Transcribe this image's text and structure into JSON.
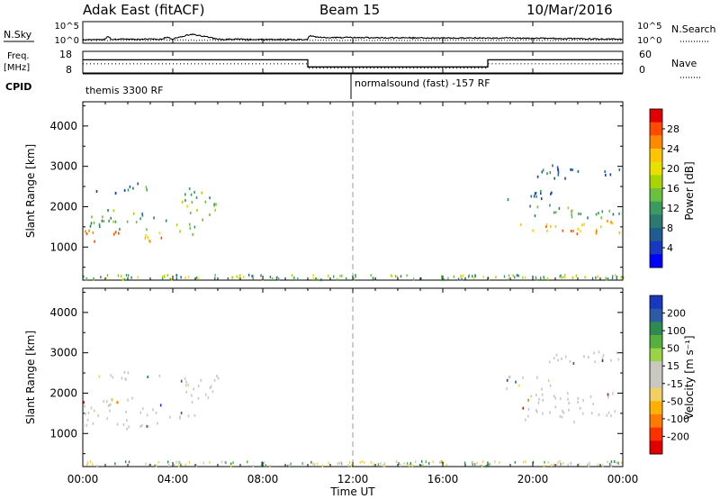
{
  "header": {
    "site": "Adak East (fitACF)",
    "beam": "Beam 15",
    "date": "10/Mar/2016"
  },
  "noise_panel": {
    "left_label": "N.Sky",
    "right_label": "N.Search",
    "left_ticks": [
      "10^5",
      "10^0"
    ],
    "right_ticks": [
      "10^5",
      "10^0"
    ]
  },
  "freq_panel": {
    "left_label_1": "Freq.",
    "left_label_2": "[MHz]",
    "right_label": "Nave",
    "left_ticks": [
      "18",
      "8"
    ],
    "right_ticks": [
      "60",
      "0"
    ]
  },
  "cpid_panel": {
    "label": "CPID",
    "segment_1": "themis 3300 RF",
    "segment_2": "normalsound (fast) -157 RF"
  },
  "power_panel": {
    "ylabel": "Slant Range [km]",
    "colorbar_label": "Power [dB]",
    "colorbar_ticks": [
      "28",
      "24",
      "20",
      "16",
      "12",
      "8",
      "4"
    ],
    "colorbar_colors": [
      "#e00000",
      "#ff4a00",
      "#ff8a00",
      "#ffc400",
      "#e8e000",
      "#a8d400",
      "#6cc040",
      "#3a9a60",
      "#2a7a70",
      "#205c90",
      "#1838c0",
      "#0000ff"
    ]
  },
  "velocity_panel": {
    "ylabel": "Slant Range [km]",
    "colorbar_label": "Velocity [m s⁻¹]",
    "colorbar_ticks": [
      "200",
      "100",
      "50",
      "15",
      "-15",
      "-50",
      "-100",
      "-200"
    ],
    "colorbar_colors": [
      "#1838c0",
      "#2a5aa8",
      "#2f8a50",
      "#55b040",
      "#9ad248",
      "#c8c8c0",
      "#c8c8c0",
      "#f0d060",
      "#ffb000",
      "#ff7a00",
      "#ff3000",
      "#e00000"
    ]
  },
  "x_axis": {
    "label": "Time UT",
    "ticks": [
      "00:00",
      "04:00",
      "08:00",
      "12:00",
      "16:00",
      "20:00",
      "00:00"
    ]
  },
  "chart_data": {
    "type": "heatmap",
    "title": "Adak East (fitACF)   Beam 15   10/Mar/2016",
    "xlabel": "Time UT",
    "ylabel": "Slant Range [km]",
    "xlim_hours": [
      0,
      24
    ],
    "ylim_km": [
      180,
      4600
    ],
    "ytick_values": [
      1000,
      2000,
      3000,
      4000
    ],
    "power_colorbar_db": [
      4,
      8,
      12,
      16,
      20,
      24,
      28
    ],
    "velocity_colorbar_ms": [
      -200,
      -100,
      -50,
      -15,
      15,
      50,
      100,
      200
    ],
    "cpid_change_hour": 12,
    "scatter_regions": [
      {
        "t_start": 0.0,
        "t_end": 3.7,
        "range_center_km": 1300,
        "range_width_km": 250,
        "power_db": 24,
        "velocity_ms": 0
      },
      {
        "t_start": 0.0,
        "t_end": 3.7,
        "range_center_km": 1700,
        "range_width_km": 400,
        "power_db": 13,
        "velocity_ms": 0
      },
      {
        "t_start": 0.0,
        "t_end": 2.0,
        "range_center_km": 2400,
        "range_width_km": 150,
        "power_db": 8,
        "velocity_ms": -10
      },
      {
        "t_start": 1.8,
        "t_end": 3.4,
        "range_center_km": 2500,
        "range_width_km": 200,
        "power_db": 10,
        "velocity_ms": 0
      },
      {
        "t_start": 3.7,
        "t_end": 5.1,
        "range_center_km": 1500,
        "range_width_km": 250,
        "power_db": 12,
        "velocity_ms": 0
      },
      {
        "t_start": 4.3,
        "t_end": 6.0,
        "range_center_km": 2100,
        "range_width_km": 700,
        "power_db": 14,
        "velocity_ms": 5
      },
      {
        "t_start": 19.3,
        "t_end": 23.9,
        "range_center_km": 1500,
        "range_width_km": 300,
        "power_db": 22,
        "velocity_ms": 0
      },
      {
        "t_start": 19.5,
        "t_end": 23.9,
        "range_center_km": 1900,
        "range_width_km": 300,
        "power_db": 11,
        "velocity_ms": 0
      },
      {
        "t_start": 18.8,
        "t_end": 21.0,
        "range_center_km": 2300,
        "range_width_km": 300,
        "power_db": 6,
        "velocity_ms": -10
      },
      {
        "t_start": 20.0,
        "t_end": 23.9,
        "range_center_km": 2900,
        "range_width_km": 300,
        "power_db": 6,
        "velocity_ms": 0
      }
    ],
    "noise_series": {
      "n_sky_log10": [
        {
          "t": 0,
          "v": 0.5
        },
        {
          "t": 1.0,
          "v": 0.55
        },
        {
          "t": 1.1,
          "v": 1.6
        },
        {
          "t": 1.25,
          "v": 0.6
        },
        {
          "t": 3.5,
          "v": 0.6
        },
        {
          "t": 3.7,
          "v": 1.2
        },
        {
          "t": 4.0,
          "v": 0.7
        },
        {
          "t": 4.5,
          "v": 1.5
        },
        {
          "t": 4.8,
          "v": 2.0
        },
        {
          "t": 5.5,
          "v": 1.3
        },
        {
          "t": 6.0,
          "v": 0.6
        },
        {
          "t": 10.0,
          "v": 0.5
        },
        {
          "t": 10.05,
          "v": 1.6
        },
        {
          "t": 10.5,
          "v": 1.1
        },
        {
          "t": 14.0,
          "v": 1.0
        },
        {
          "t": 20.0,
          "v": 0.9
        },
        {
          "t": 24.0,
          "v": 0.6
        }
      ]
    },
    "frequency_mhz": [
      {
        "t": 0,
        "v": 14.2
      },
      {
        "t": 10.0,
        "v": 14.2
      },
      {
        "t": 10.0,
        "v": 10.6
      },
      {
        "t": 18.0,
        "v": 10.6
      },
      {
        "t": 18.0,
        "v": 14.2
      },
      {
        "t": 24.0,
        "v": 14.2
      }
    ],
    "nave": [
      {
        "t": 0,
        "v": 25
      },
      {
        "t": 10.0,
        "v": 25
      },
      {
        "t": 10.0,
        "v": 12
      },
      {
        "t": 18.0,
        "v": 12
      },
      {
        "t": 18.0,
        "v": 25
      },
      {
        "t": 24.0,
        "v": 25
      }
    ]
  }
}
